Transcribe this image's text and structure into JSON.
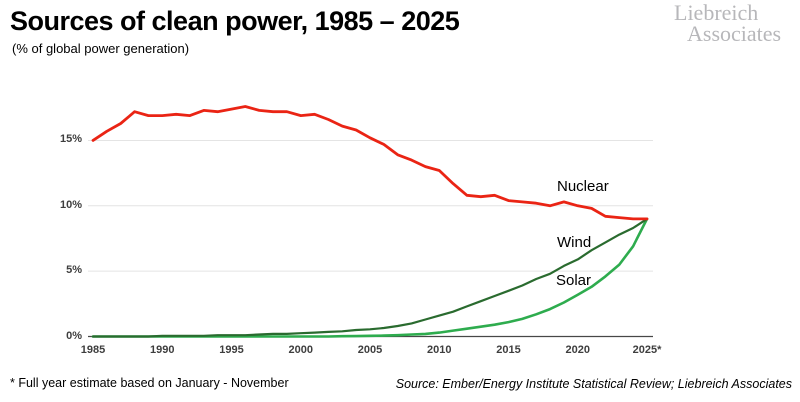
{
  "header": {
    "title": "Sources of clean power, 1985 – 2025",
    "subtitle": "(% of global power generation)"
  },
  "logo": {
    "line1": "Liebreich",
    "line2": "Associates"
  },
  "footer": {
    "note": "* Full year estimate based on January - November",
    "source": "Source: Ember/Energy Institute Statistical Review; Liebreich Associates"
  },
  "chart_data": {
    "type": "line",
    "title": "Sources of clean power, 1985 – 2025",
    "subtitle": "(% of global power generation)",
    "xlabel": "",
    "ylabel": "% of global power generation",
    "ylim": [
      0,
      18.5
    ],
    "grid": true,
    "legend_position": "inline-labels",
    "x": [
      1985,
      1986,
      1987,
      1988,
      1989,
      1990,
      1991,
      1992,
      1993,
      1994,
      1995,
      1996,
      1997,
      1998,
      1999,
      2000,
      2001,
      2002,
      2003,
      2004,
      2005,
      2006,
      2007,
      2008,
      2009,
      2010,
      2011,
      2012,
      2013,
      2014,
      2015,
      2016,
      2017,
      2018,
      2019,
      2020,
      2021,
      2022,
      2023,
      2024,
      2025
    ],
    "x_tick_values": [
      1985,
      1990,
      1995,
      2000,
      2005,
      2010,
      2015,
      2020,
      2025
    ],
    "x_tick_labels": [
      "1985",
      "1990",
      "1995",
      "2000",
      "2005",
      "2010",
      "2015",
      "2020",
      "2025*"
    ],
    "y_tick_values": [
      0,
      5,
      10,
      15
    ],
    "y_tick_labels": [
      "0%",
      "5%",
      "10%",
      "15%"
    ],
    "axis_color": "#474747",
    "gridline_color": "#e4e4e4",
    "series": [
      {
        "name": "Nuclear",
        "color": "#ea2414",
        "values": [
          15.0,
          15.7,
          16.3,
          17.2,
          16.9,
          16.9,
          17.0,
          16.9,
          17.3,
          17.2,
          17.4,
          17.6,
          17.3,
          17.2,
          17.2,
          16.9,
          17.0,
          16.6,
          16.1,
          15.8,
          15.2,
          14.7,
          13.9,
          13.5,
          13.0,
          12.7,
          11.7,
          10.8,
          10.7,
          10.8,
          10.4,
          10.3,
          10.2,
          10.0,
          10.3,
          10.0,
          9.8,
          9.2,
          9.1,
          9.0,
          9.0
        ]
      },
      {
        "name": "Wind",
        "color": "#2a6b2f",
        "values": [
          0,
          0,
          0,
          0,
          0,
          0.05,
          0.05,
          0.05,
          0.05,
          0.1,
          0.1,
          0.1,
          0.15,
          0.2,
          0.2,
          0.25,
          0.3,
          0.35,
          0.4,
          0.5,
          0.55,
          0.65,
          0.8,
          1.0,
          1.3,
          1.6,
          1.9,
          2.3,
          2.7,
          3.1,
          3.5,
          3.9,
          4.4,
          4.8,
          5.4,
          5.9,
          6.6,
          7.2,
          7.8,
          8.3,
          9.0
        ]
      },
      {
        "name": "Solar",
        "color": "#2eac4e",
        "values": [
          0,
          0,
          0,
          0,
          0,
          0,
          0,
          0,
          0,
          0,
          0,
          0,
          0,
          0,
          0,
          0,
          0,
          0,
          0.02,
          0.03,
          0.05,
          0.07,
          0.1,
          0.15,
          0.2,
          0.3,
          0.45,
          0.6,
          0.75,
          0.9,
          1.1,
          1.35,
          1.7,
          2.1,
          2.6,
          3.2,
          3.8,
          4.6,
          5.5,
          6.9,
          9.0
        ]
      }
    ]
  }
}
